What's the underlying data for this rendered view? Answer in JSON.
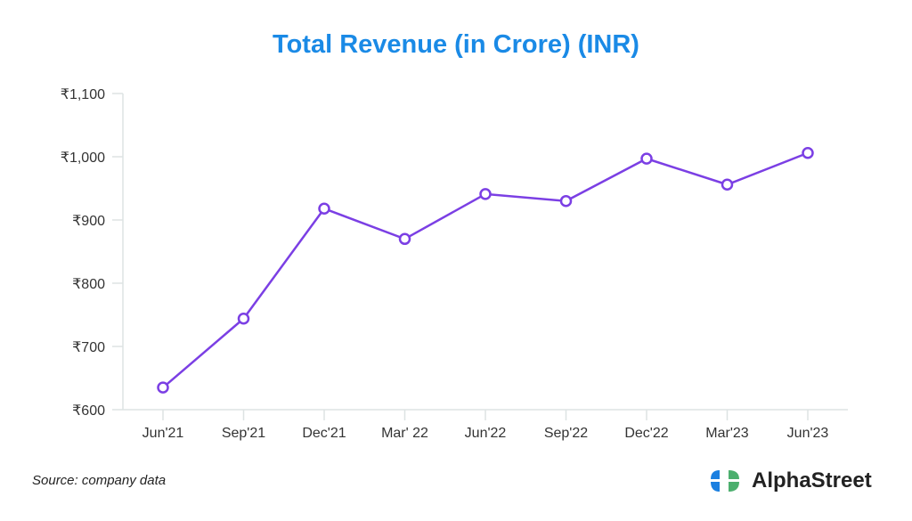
{
  "chart_data": {
    "type": "line",
    "title": "Total Revenue (in Crore) (INR)",
    "xlabel": "",
    "ylabel": "",
    "categories": [
      "Jun'21",
      "Sep'21",
      "Dec'21",
      "Mar' 22",
      "Jun'22",
      "Sep'22",
      "Dec'22",
      "Mar'23",
      "Jun'23"
    ],
    "series": [
      {
        "name": "Total Revenue",
        "values": [
          635,
          744,
          918,
          870,
          941,
          930,
          997,
          956,
          1006
        ],
        "color": "#7b3fe4"
      }
    ],
    "ylim": [
      600,
      1100
    ],
    "yticks": [
      600,
      700,
      800,
      900,
      1000,
      1100
    ],
    "ytick_labels": [
      "₹600",
      "₹700",
      "₹800",
      "₹900",
      "₹1,000",
      "₹1,100"
    ],
    "grid": false,
    "legend": "none"
  },
  "footer": {
    "source": "Source: company data",
    "brand": "AlphaStreet"
  }
}
